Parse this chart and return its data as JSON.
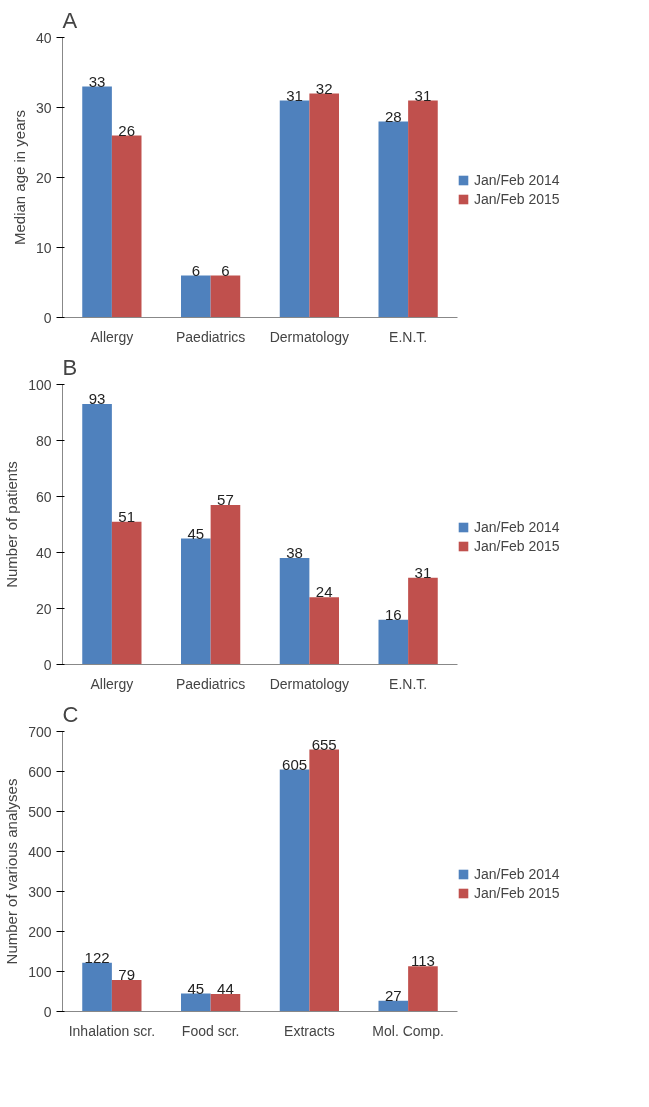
{
  "chart_data": [
    {
      "type": "bar",
      "title": "A",
      "ylabel": "Median age in years",
      "categories": [
        "Allergy",
        "Paediatrics",
        "Dermatology",
        "E.N.T."
      ],
      "series": [
        {
          "name": "Jan/Feb 2014",
          "color": "#4f81bd",
          "values": [
            33,
            6,
            31,
            28
          ]
        },
        {
          "name": "Jan/Feb 2015",
          "color": "#c0504d",
          "values": [
            26,
            6,
            32,
            31
          ]
        }
      ],
      "ylim": [
        0,
        40
      ],
      "yticks": [
        0,
        10,
        20,
        30,
        40
      ],
      "data_labels": true,
      "legend": "right",
      "grid": false
    },
    {
      "type": "bar",
      "title": "B",
      "ylabel": "Number of patients",
      "categories": [
        "Allergy",
        "Paediatrics",
        "Dermatology",
        "E.N.T."
      ],
      "series": [
        {
          "name": "Jan/Feb 2014",
          "color": "#4f81bd",
          "values": [
            93,
            45,
            38,
            16
          ]
        },
        {
          "name": "Jan/Feb 2015",
          "color": "#c0504d",
          "values": [
            51,
            57,
            24,
            31
          ]
        }
      ],
      "ylim": [
        0,
        100
      ],
      "yticks": [
        0,
        20,
        40,
        60,
        80,
        100
      ],
      "data_labels": true,
      "legend": "right",
      "grid": false
    },
    {
      "type": "bar",
      "title": "C",
      "ylabel": "Number of various analyses",
      "categories": [
        "Inhalation scr.",
        "Food scr.",
        "Extracts",
        "Mol. Comp."
      ],
      "series": [
        {
          "name": "Jan/Feb 2014",
          "color": "#4f81bd",
          "values": [
            122,
            45,
            605,
            27
          ]
        },
        {
          "name": "Jan/Feb 2015",
          "color": "#c0504d",
          "values": [
            79,
            44,
            655,
            113
          ]
        }
      ],
      "ylim": [
        0,
        700
      ],
      "yticks": [
        0,
        100,
        200,
        300,
        400,
        500,
        600,
        700
      ],
      "data_labels": true,
      "legend": "right",
      "grid": false
    }
  ]
}
